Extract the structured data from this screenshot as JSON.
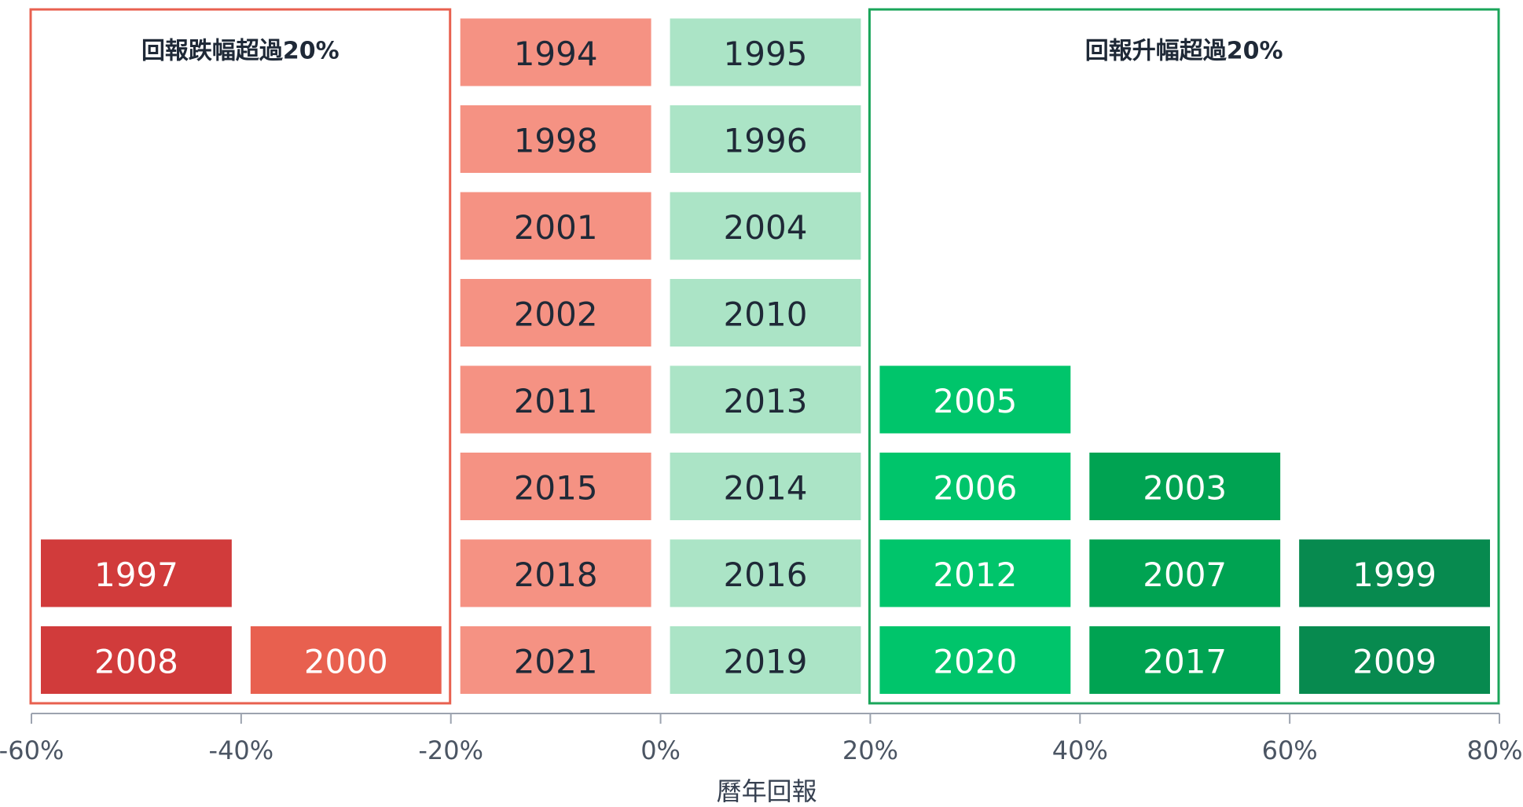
{
  "chart_data": {
    "type": "bar",
    "xlabel": "曆年回報",
    "xlim": [
      -60,
      80
    ],
    "x_ticks": [
      "-60%",
      "-40%",
      "-20%",
      "0%",
      "20%",
      "40%",
      "60%",
      "80%"
    ],
    "x_tick_values": [
      -60,
      -40,
      -20,
      0,
      20,
      40,
      60,
      80
    ],
    "bins": [
      {
        "range": [
          -60,
          -40
        ],
        "years": [
          "2008",
          "1997"
        ],
        "color": "#d13b3b"
      },
      {
        "range": [
          -40,
          -20
        ],
        "years": [
          "2000"
        ],
        "color": "#e8604f"
      },
      {
        "range": [
          -20,
          0
        ],
        "years": [
          "2021",
          "2018",
          "2015",
          "2011",
          "2002",
          "2001",
          "1998",
          "1994"
        ],
        "color": "#f59283"
      },
      {
        "range": [
          0,
          20
        ],
        "years": [
          "2019",
          "2016",
          "2014",
          "2013",
          "2010",
          "2004",
          "1996",
          "1995"
        ],
        "color": "#abe4c6"
      },
      {
        "range": [
          20,
          40
        ],
        "years": [
          "2020",
          "2012",
          "2006",
          "2005"
        ],
        "color": "#00c56b"
      },
      {
        "range": [
          40,
          60
        ],
        "years": [
          "2017",
          "2007",
          "2003"
        ],
        "color": "#00a352"
      },
      {
        "range": [
          60,
          80
        ],
        "years": [
          "2009",
          "1999"
        ],
        "color": "#078a4f"
      }
    ],
    "annotations": [
      {
        "label": "回報跌幅超過20%",
        "range": [
          -60,
          -20
        ],
        "color": "#e8604f"
      },
      {
        "label": "回報升幅超過20%",
        "range": [
          20,
          80
        ],
        "color": "#1aa55a"
      }
    ]
  },
  "colors": {
    "dark_text": "#1f2937",
    "light_text": "#ffffff",
    "axis": "#9ca3af"
  }
}
